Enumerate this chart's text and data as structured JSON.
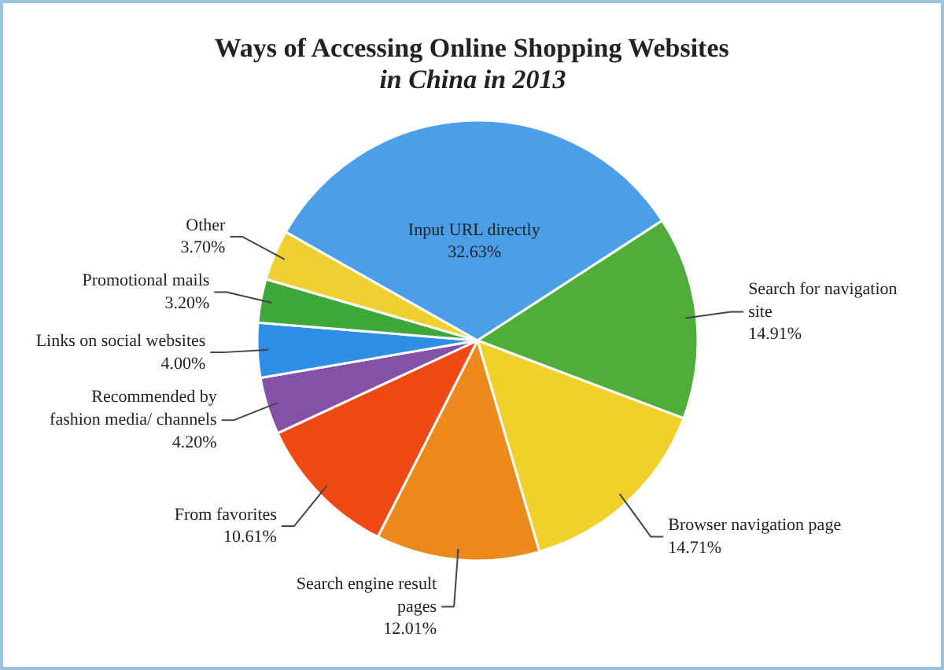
{
  "chart_data": {
    "type": "pie",
    "title": "Ways of Accessing Online Shopping Websites",
    "subtitle": "in China in 2013",
    "categories": [
      "Input URL directly",
      "Search for navigation\nsite",
      "Browser navigation page",
      "Search engine result\npages",
      "From favorites",
      "Recommended by\nfashion media/ channels",
      "Links on social websites",
      "Promotional mails",
      "Other"
    ],
    "values": [
      32.63,
      14.91,
      14.71,
      12.01,
      10.61,
      4.2,
      4.0,
      3.2,
      3.7
    ],
    "colors": [
      "#4a9fe8",
      "#4fae3a",
      "#f2d02c",
      "#ec8a1c",
      "#ef4a14",
      "#8450a8",
      "#2f8ee6",
      "#3fa83a",
      "#f0d030"
    ],
    "value_labels": [
      "32.63%",
      "14.91%",
      "14.71%",
      "12.01%",
      "10.61%",
      "4.20%",
      "4.00%",
      "3.20%",
      "3.70%"
    ]
  }
}
